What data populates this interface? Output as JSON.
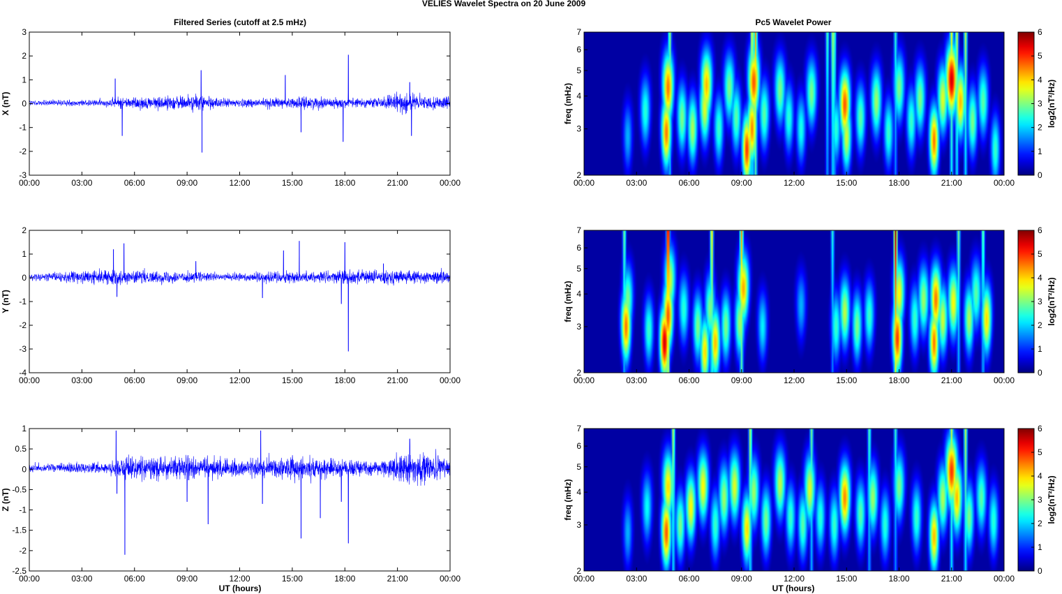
{
  "figure": {
    "suptitle": "VELIES Wavelet Spectra on 20 June      2009",
    "left_title": "Filtered Series (cutoff at 2.5 mHz)",
    "right_title": "Pc5 Wavelet Power",
    "xlabel": "UT (hours)"
  },
  "colors": {
    "trace": "#0000ff",
    "axes": "#000000",
    "background": "#000080"
  },
  "chart_data": [
    {
      "type": "line",
      "panel": "X",
      "ylabel": "X (nT)",
      "xlim": [
        0,
        24
      ],
      "ylim": [
        -3,
        3
      ],
      "yticks": [
        -3,
        -2,
        -1,
        0,
        1,
        2,
        3
      ],
      "xticks": [
        "00:00",
        "03:00",
        "06:00",
        "09:00",
        "12:00",
        "15:00",
        "18:00",
        "21:00",
        "00:00"
      ],
      "base_amplitude": 0.1,
      "activity": [
        [
          0,
          0.1
        ],
        [
          4.5,
          0.15
        ],
        [
          5,
          0.3
        ],
        [
          7,
          0.3
        ],
        [
          9.5,
          0.4
        ],
        [
          11,
          0.2
        ],
        [
          14.5,
          0.25
        ],
        [
          16,
          0.3
        ],
        [
          18,
          0.2
        ],
        [
          20,
          0.25
        ],
        [
          21.6,
          0.6
        ],
        [
          22.5,
          0.3
        ],
        [
          24,
          0.3
        ]
      ],
      "spikes": [
        [
          4.9,
          1.05
        ],
        [
          5.3,
          -1.35
        ],
        [
          9.8,
          1.4
        ],
        [
          9.85,
          -2.05
        ],
        [
          14.6,
          1.2
        ],
        [
          15.5,
          -1.2
        ],
        [
          17.9,
          -1.6
        ],
        [
          18.2,
          2.05
        ],
        [
          21.7,
          0.9
        ],
        [
          21.8,
          -1.35
        ]
      ]
    },
    {
      "type": "line",
      "panel": "Y",
      "ylabel": "Y (nT)",
      "xlim": [
        0,
        24
      ],
      "ylim": [
        -4,
        2
      ],
      "yticks": [
        -4,
        -3,
        -2,
        -1,
        0,
        1,
        2
      ],
      "xticks": [
        "00:00",
        "03:00",
        "06:00",
        "09:00",
        "12:00",
        "15:00",
        "18:00",
        "21:00",
        "00:00"
      ],
      "base_amplitude": 0.12,
      "activity": [
        [
          0,
          0.1
        ],
        [
          2.5,
          0.3
        ],
        [
          4.5,
          0.35
        ],
        [
          7,
          0.3
        ],
        [
          9,
          0.25
        ],
        [
          11,
          0.15
        ],
        [
          14.5,
          0.3
        ],
        [
          16,
          0.25
        ],
        [
          18,
          0.35
        ],
        [
          20,
          0.35
        ],
        [
          24,
          0.3
        ]
      ],
      "spikes": [
        [
          4.8,
          1.2
        ],
        [
          5.0,
          -0.8
        ],
        [
          5.4,
          1.45
        ],
        [
          9.5,
          0.7
        ],
        [
          13.3,
          -0.85
        ],
        [
          14.5,
          1.15
        ],
        [
          15.4,
          1.55
        ],
        [
          17.8,
          -1.1
        ],
        [
          18.2,
          -3.1
        ],
        [
          18.0,
          1.5
        ],
        [
          20.2,
          0.6
        ]
      ]
    },
    {
      "type": "line",
      "panel": "Z",
      "ylabel": "Z (nT)",
      "xlim": [
        0,
        24
      ],
      "ylim": [
        -2.5,
        1
      ],
      "yticks": [
        -2.5,
        -2,
        -1.5,
        -1,
        -0.5,
        0,
        0.5,
        1
      ],
      "xticks": [
        "00:00",
        "03:00",
        "06:00",
        "09:00",
        "12:00",
        "15:00",
        "18:00",
        "21:00",
        "00:00"
      ],
      "base_amplitude": 0.08,
      "activity": [
        [
          0,
          0.1
        ],
        [
          4.5,
          0.15
        ],
        [
          5,
          0.3
        ],
        [
          9.5,
          0.35
        ],
        [
          12,
          0.25
        ],
        [
          15,
          0.35
        ],
        [
          17,
          0.3
        ],
        [
          18,
          0.25
        ],
        [
          20,
          0.2
        ],
        [
          21.6,
          0.5
        ],
        [
          24,
          0.3
        ]
      ],
      "spikes": [
        [
          4.95,
          0.95
        ],
        [
          5.0,
          -0.6
        ],
        [
          5.45,
          -2.1
        ],
        [
          9.0,
          -0.8
        ],
        [
          10.2,
          -1.35
        ],
        [
          13.2,
          0.95
        ],
        [
          13.3,
          -0.85
        ],
        [
          15.5,
          -1.7
        ],
        [
          16.6,
          -1.2
        ],
        [
          17.8,
          -0.8
        ],
        [
          18.2,
          -1.82
        ],
        [
          21.7,
          0.75
        ]
      ]
    },
    {
      "type": "heatmap",
      "panel": "X",
      "ylabel": "freq (mHz)",
      "yscale": "log",
      "ylim": [
        2,
        7
      ],
      "yticks": [
        2,
        3,
        4,
        5,
        6,
        7
      ],
      "xticks": [
        "00:00",
        "03:00",
        "06:00",
        "09:00",
        "12:00",
        "15:00",
        "18:00",
        "21:00",
        "00:00"
      ],
      "colorbar": {
        "label": "log2(nT²/Hz)",
        "range": [
          0,
          6
        ],
        "ticks": [
          0,
          1,
          2,
          3,
          4,
          5,
          6
        ]
      },
      "blobs": [
        [
          2.5,
          2.8,
          1.8
        ],
        [
          3.5,
          3.5,
          2.5
        ],
        [
          4.7,
          2.9,
          4.6
        ],
        [
          4.8,
          4.3,
          4.6
        ],
        [
          5.6,
          3.3,
          3.0
        ],
        [
          6.2,
          3.0,
          3.3
        ],
        [
          6.9,
          3.6,
          3.6
        ],
        [
          7.0,
          4.4,
          4.2
        ],
        [
          7.7,
          3.0,
          2.6
        ],
        [
          8.3,
          4.3,
          3.0
        ],
        [
          8.7,
          3.3,
          2.8
        ],
        [
          9.3,
          2.5,
          5.0
        ],
        [
          9.6,
          3.0,
          4.5
        ],
        [
          9.7,
          4.5,
          4.8
        ],
        [
          10.3,
          3.4,
          2.8
        ],
        [
          11.2,
          4.2,
          3.0
        ],
        [
          11.7,
          3.3,
          2.5
        ],
        [
          12.4,
          3.0,
          2.4
        ],
        [
          13.0,
          4.1,
          3.0
        ],
        [
          14.4,
          3.0,
          2.5
        ],
        [
          14.9,
          3.7,
          4.8
        ],
        [
          15.0,
          2.8,
          3.5
        ],
        [
          15.8,
          3.3,
          2.8
        ],
        [
          16.7,
          3.8,
          3.2
        ],
        [
          17.4,
          2.9,
          2.6
        ],
        [
          18.0,
          4.3,
          3.0
        ],
        [
          18.7,
          3.2,
          2.6
        ],
        [
          19.2,
          3.9,
          3.0
        ],
        [
          20.0,
          2.7,
          4.6
        ],
        [
          20.5,
          3.9,
          3.6
        ],
        [
          21.0,
          4.6,
          5.6
        ],
        [
          21.5,
          3.8,
          4.2
        ],
        [
          22.2,
          3.2,
          3.0
        ],
        [
          22.8,
          3.8,
          2.8
        ],
        [
          23.5,
          2.5,
          2.6
        ]
      ],
      "streaks": [
        [
          4.9,
          3.2
        ],
        [
          9.8,
          4.5
        ],
        [
          9.6,
          3.8
        ],
        [
          13.9,
          2.8
        ],
        [
          14.3,
          3.0
        ],
        [
          14.2,
          3.2
        ],
        [
          21.0,
          3.8
        ],
        [
          21.3,
          3.6
        ],
        [
          21.8,
          3.5
        ],
        [
          17.8,
          2.6
        ]
      ]
    },
    {
      "type": "heatmap",
      "panel": "Y",
      "ylabel": "freq (mHz)",
      "yscale": "log",
      "ylim": [
        2,
        7
      ],
      "yticks": [
        2,
        3,
        4,
        5,
        6,
        7
      ],
      "xticks": [
        "00:00",
        "03:00",
        "06:00",
        "09:00",
        "12:00",
        "15:00",
        "18:00",
        "21:00",
        "00:00"
      ],
      "colorbar": {
        "label": "log2(nT²/Hz)",
        "range": [
          0,
          6
        ],
        "ticks": [
          0,
          1,
          2,
          3,
          4,
          5,
          6
        ]
      },
      "blobs": [
        [
          2.4,
          3.0,
          4.6
        ],
        [
          2.5,
          3.8,
          3.0
        ],
        [
          3.7,
          2.9,
          2.6
        ],
        [
          4.6,
          2.6,
          5.6
        ],
        [
          4.8,
          3.3,
          4.8
        ],
        [
          4.9,
          4.5,
          3.5
        ],
        [
          5.7,
          3.5,
          2.5
        ],
        [
          6.5,
          3.0,
          3.0
        ],
        [
          6.9,
          2.4,
          4.0
        ],
        [
          7.2,
          3.5,
          3.0
        ],
        [
          7.5,
          2.6,
          4.2
        ],
        [
          8.1,
          3.0,
          3.0
        ],
        [
          8.9,
          3.1,
          3.2
        ],
        [
          9.1,
          4.2,
          4.3
        ],
        [
          10.2,
          3.0,
          2.2
        ],
        [
          12.4,
          3.6,
          1.8
        ],
        [
          14.4,
          3.0,
          2.6
        ],
        [
          14.9,
          3.4,
          3.4
        ],
        [
          15.6,
          3.0,
          3.0
        ],
        [
          16.3,
          3.3,
          2.6
        ],
        [
          17.9,
          2.7,
          5.0
        ],
        [
          18.0,
          4.0,
          3.8
        ],
        [
          18.9,
          3.2,
          2.6
        ],
        [
          19.4,
          3.8,
          3.2
        ],
        [
          20.0,
          2.6,
          4.6
        ],
        [
          20.1,
          3.8,
          4.6
        ],
        [
          20.5,
          3.2,
          3.5
        ],
        [
          21.1,
          3.7,
          3.8
        ],
        [
          22.0,
          3.2,
          3.3
        ],
        [
          22.4,
          4.0,
          2.8
        ],
        [
          23.0,
          3.2,
          4.0
        ]
      ],
      "streaks": [
        [
          4.8,
          6.0
        ],
        [
          7.3,
          4.0
        ],
        [
          9.0,
          4.5
        ],
        [
          17.8,
          6.0
        ],
        [
          21.4,
          3.0
        ],
        [
          22.8,
          3.0
        ],
        [
          14.2,
          2.5
        ],
        [
          2.3,
          3.0
        ]
      ]
    },
    {
      "type": "heatmap",
      "panel": "Z",
      "ylabel": "freq (mHz)",
      "yscale": "log",
      "ylim": [
        2,
        7
      ],
      "yticks": [
        2,
        3,
        4,
        5,
        6,
        7
      ],
      "xticks": [
        "00:00",
        "03:00",
        "06:00",
        "09:00",
        "12:00",
        "15:00",
        "18:00",
        "21:00",
        "00:00"
      ],
      "colorbar": {
        "label": "log2(nT²/Hz)",
        "range": [
          0,
          6
        ],
        "ticks": [
          0,
          1,
          2,
          3,
          4,
          5,
          6
        ]
      },
      "blobs": [
        [
          2.5,
          2.8,
          1.8
        ],
        [
          3.6,
          3.5,
          2.3
        ],
        [
          4.7,
          2.8,
          4.8
        ],
        [
          4.8,
          4.2,
          4.0
        ],
        [
          5.5,
          3.0,
          3.0
        ],
        [
          6.1,
          3.5,
          3.8
        ],
        [
          6.8,
          4.2,
          3.8
        ],
        [
          7.5,
          3.0,
          2.6
        ],
        [
          8.0,
          3.8,
          3.2
        ],
        [
          8.6,
          4.2,
          3.6
        ],
        [
          9.3,
          2.9,
          4.0
        ],
        [
          9.7,
          4.0,
          3.2
        ],
        [
          10.4,
          3.1,
          3.0
        ],
        [
          11.2,
          4.3,
          3.4
        ],
        [
          11.8,
          3.2,
          2.6
        ],
        [
          12.5,
          3.0,
          2.8
        ],
        [
          12.9,
          4.1,
          3.6
        ],
        [
          13.5,
          3.2,
          2.5
        ],
        [
          14.3,
          3.0,
          2.6
        ],
        [
          14.9,
          3.8,
          4.5
        ],
        [
          15.8,
          3.3,
          2.8
        ],
        [
          16.5,
          3.8,
          3.2
        ],
        [
          17.2,
          3.0,
          2.5
        ],
        [
          18.0,
          4.2,
          3.0
        ],
        [
          19.0,
          3.2,
          2.6
        ],
        [
          20.0,
          2.7,
          4.2
        ],
        [
          20.5,
          3.8,
          3.3
        ],
        [
          21.0,
          4.8,
          5.0
        ],
        [
          21.3,
          3.8,
          4.2
        ],
        [
          22.0,
          3.2,
          3.0
        ],
        [
          22.7,
          3.8,
          2.8
        ],
        [
          23.4,
          3.1,
          2.5
        ]
      ],
      "streaks": [
        [
          5.1,
          3.5
        ],
        [
          9.5,
          3.5
        ],
        [
          13.0,
          3.0
        ],
        [
          16.3,
          2.8
        ],
        [
          17.8,
          2.6
        ],
        [
          21.0,
          3.5
        ],
        [
          21.8,
          3.5
        ]
      ]
    }
  ]
}
